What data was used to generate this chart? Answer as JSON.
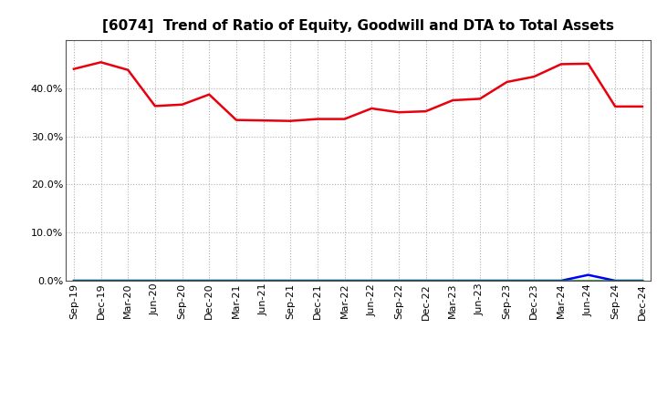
{
  "title": "[6074]  Trend of Ratio of Equity, Goodwill and DTA to Total Assets",
  "x_labels": [
    "Sep-19",
    "Dec-19",
    "Mar-20",
    "Jun-20",
    "Sep-20",
    "Dec-20",
    "Mar-21",
    "Jun-21",
    "Sep-21",
    "Dec-21",
    "Mar-22",
    "Jun-22",
    "Sep-22",
    "Dec-22",
    "Mar-23",
    "Jun-23",
    "Sep-23",
    "Dec-23",
    "Mar-24",
    "Jun-24",
    "Sep-24",
    "Dec-24"
  ],
  "equity": [
    0.44,
    0.454,
    0.438,
    0.363,
    0.366,
    0.387,
    0.334,
    0.333,
    0.332,
    0.336,
    0.336,
    0.358,
    0.35,
    0.352,
    0.375,
    0.378,
    0.413,
    0.424,
    0.45,
    0.451,
    0.362,
    0.362
  ],
  "goodwill": [
    0.0,
    0.0,
    0.0,
    0.0,
    0.0,
    0.0,
    0.0,
    0.0,
    0.0,
    0.0,
    0.0,
    0.0,
    0.0,
    0.0,
    0.0,
    0.0,
    0.0,
    0.0,
    0.0,
    0.012,
    0.0,
    0.0
  ],
  "dta": [
    0.0,
    0.0,
    0.0,
    0.0,
    0.0,
    0.0,
    0.0,
    0.0,
    0.0,
    0.0,
    0.0,
    0.0,
    0.0,
    0.0,
    0.0,
    0.0,
    0.0,
    0.0,
    0.0,
    0.0,
    0.0,
    0.0
  ],
  "equity_color": "#e8000d",
  "goodwill_color": "#0000ff",
  "dta_color": "#008000",
  "background_color": "#ffffff",
  "grid_color": "#b0b0b0",
  "ylim_min": 0.0,
  "ylim_max": 0.5,
  "yticks": [
    0.0,
    0.1,
    0.2,
    0.3,
    0.4
  ],
  "line_width": 1.8,
  "title_fontsize": 11,
  "tick_fontsize": 8,
  "legend_fontsize": 9
}
